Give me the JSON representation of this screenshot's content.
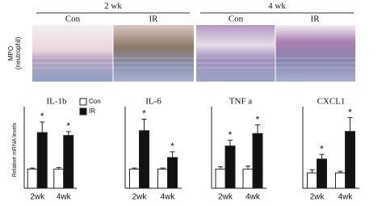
{
  "figure": {
    "row_label": "MPO\n(neutrophil)",
    "groups": [
      {
        "title": "2 wk",
        "panels": [
          "Con",
          "IR"
        ]
      },
      {
        "title": "4 wk",
        "panels": [
          "Con",
          "IR"
        ]
      }
    ]
  },
  "chart_data": [
    {
      "type": "bar",
      "title": "IL-1b",
      "ylabel": "Relative mRNA levels",
      "categories": [
        "2wk",
        "4wk"
      ],
      "ylim": [
        0,
        4
      ],
      "legend": true,
      "series": [
        {
          "name": "Con",
          "color": "#ffffff",
          "values": [
            1,
            1
          ],
          "errors": [
            0.05,
            0.08
          ]
        },
        {
          "name": "IR",
          "color": "#111111",
          "values": [
            2.9,
            2.75
          ],
          "errors": [
            0.55,
            0.2
          ],
          "annotations": [
            "*",
            "*"
          ]
        }
      ]
    },
    {
      "type": "bar",
      "title": "IL-6",
      "categories": [
        "2wk",
        "4wk"
      ],
      "ylim": [
        0,
        4
      ],
      "legend": false,
      "series": [
        {
          "color": "#ffffff",
          "values": [
            1,
            1
          ],
          "errors": [
            0.05,
            0.05
          ]
        },
        {
          "color": "#111111",
          "values": [
            3.0,
            1.6
          ],
          "errors": [
            0.6,
            0.3
          ],
          "annotations": [
            "*",
            "*"
          ]
        }
      ]
    },
    {
      "type": "bar",
      "title": "TNF a",
      "categories": [
        "2wk",
        "4wk"
      ],
      "ylim": [
        0,
        4
      ],
      "legend": false,
      "series": [
        {
          "color": "#ffffff",
          "values": [
            1,
            1
          ],
          "errors": [
            0.12,
            0.15
          ]
        },
        {
          "color": "#111111",
          "values": [
            2.2,
            2.85
          ],
          "errors": [
            0.3,
            0.45
          ],
          "annotations": [
            "*",
            "*"
          ]
        }
      ]
    },
    {
      "type": "bar",
      "title": "CXCL1",
      "categories": [
        "2wk",
        "4wk"
      ],
      "ylim": [
        0,
        5
      ],
      "legend": false,
      "series": [
        {
          "color": "#ffffff",
          "values": [
            1,
            1
          ],
          "errors": [
            0.2,
            0.1
          ]
        },
        {
          "color": "#111111",
          "values": [
            1.9,
            3.7
          ],
          "errors": [
            0.3,
            0.9
          ],
          "annotations": [
            "*",
            "*"
          ]
        }
      ]
    }
  ]
}
